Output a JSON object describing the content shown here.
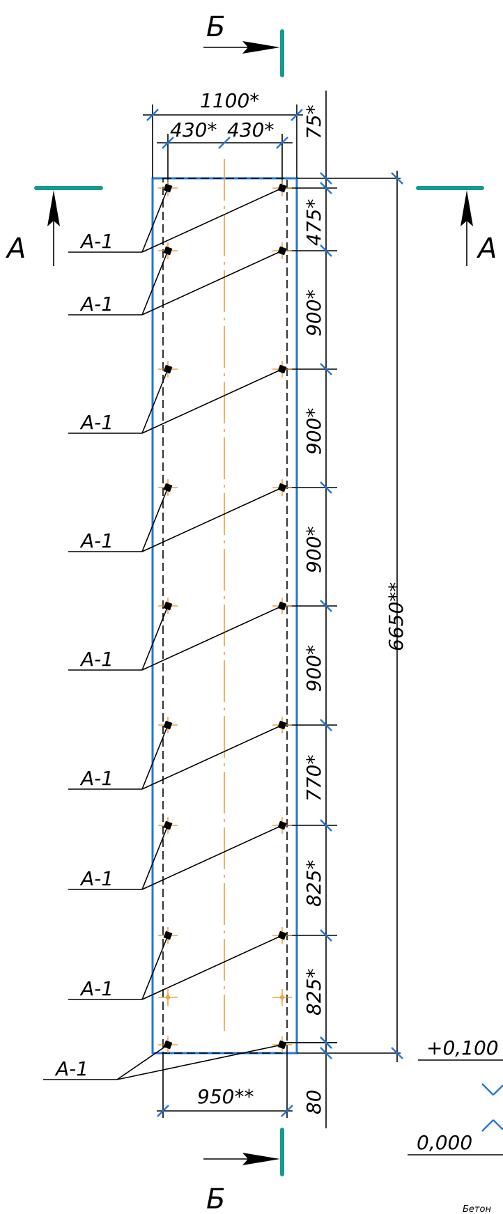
{
  "colors": {
    "outline": "#1e78d8",
    "tick": "#1e78d8",
    "axis": "#e8901e",
    "section_mark": "#169a90",
    "ink": "#000000"
  },
  "labels": {
    "section_b": "Б",
    "section_a": "А",
    "top_dim": "1100*",
    "half_dim": "430*",
    "top_offset": "75*",
    "overall_height": "6650**",
    "bottom_dim": "950**",
    "bottom_offset": "80",
    "mark_plus": "+0,100",
    "mark_zero": "0,000",
    "cut_text": "Бетон",
    "anchor_tag": "А-1"
  },
  "spacing_dims": [
    "475*",
    "900*",
    "900*",
    "900*",
    "900*",
    "770*",
    "825*",
    "825*"
  ],
  "anchors_count": 10
}
